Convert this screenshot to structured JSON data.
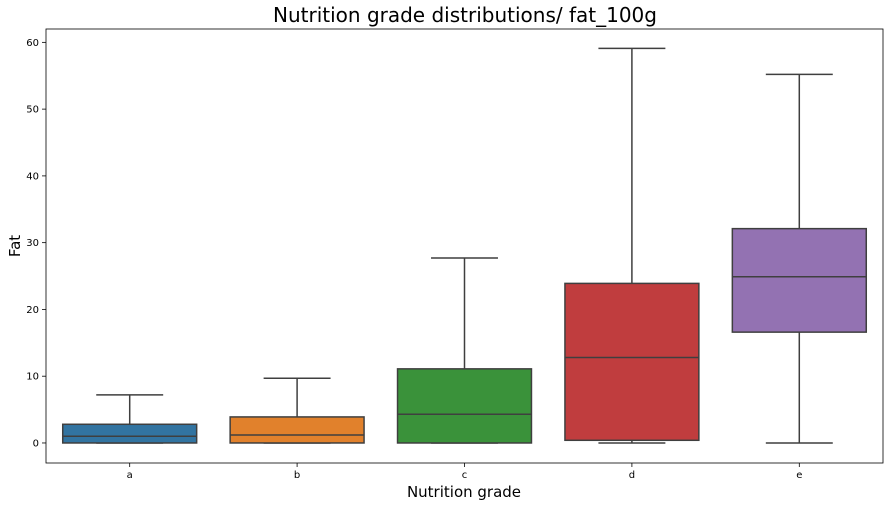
{
  "chart_data": {
    "type": "box",
    "title": "Nutrition grade distributions/ fat_100g",
    "xlabel": "Nutrition grade",
    "ylabel": "Fat",
    "ylim": [
      -3,
      62
    ],
    "yticks": [
      0,
      10,
      20,
      30,
      40,
      50,
      60
    ],
    "grid": false,
    "legend": "none",
    "series": [
      {
        "category": "a",
        "color": "#3274a1",
        "whisker_low": 0,
        "q1": 0,
        "median": 1.0,
        "q3": 2.8,
        "whisker_high": 7.2
      },
      {
        "category": "b",
        "color": "#e1812c",
        "whisker_low": 0,
        "q1": 0,
        "median": 1.2,
        "q3": 3.9,
        "whisker_high": 9.7
      },
      {
        "category": "c",
        "color": "#3a923a",
        "whisker_low": 0,
        "q1": 0,
        "median": 4.3,
        "q3": 11.1,
        "whisker_high": 27.7
      },
      {
        "category": "d",
        "color": "#c03d3e",
        "whisker_low": 0,
        "q1": 0.4,
        "median": 12.8,
        "q3": 23.9,
        "whisker_high": 59.1
      },
      {
        "category": "e",
        "color": "#9372b2",
        "whisker_low": 0,
        "q1": 16.6,
        "median": 24.9,
        "q3": 32.1,
        "whisker_high": 55.2
      }
    ]
  }
}
